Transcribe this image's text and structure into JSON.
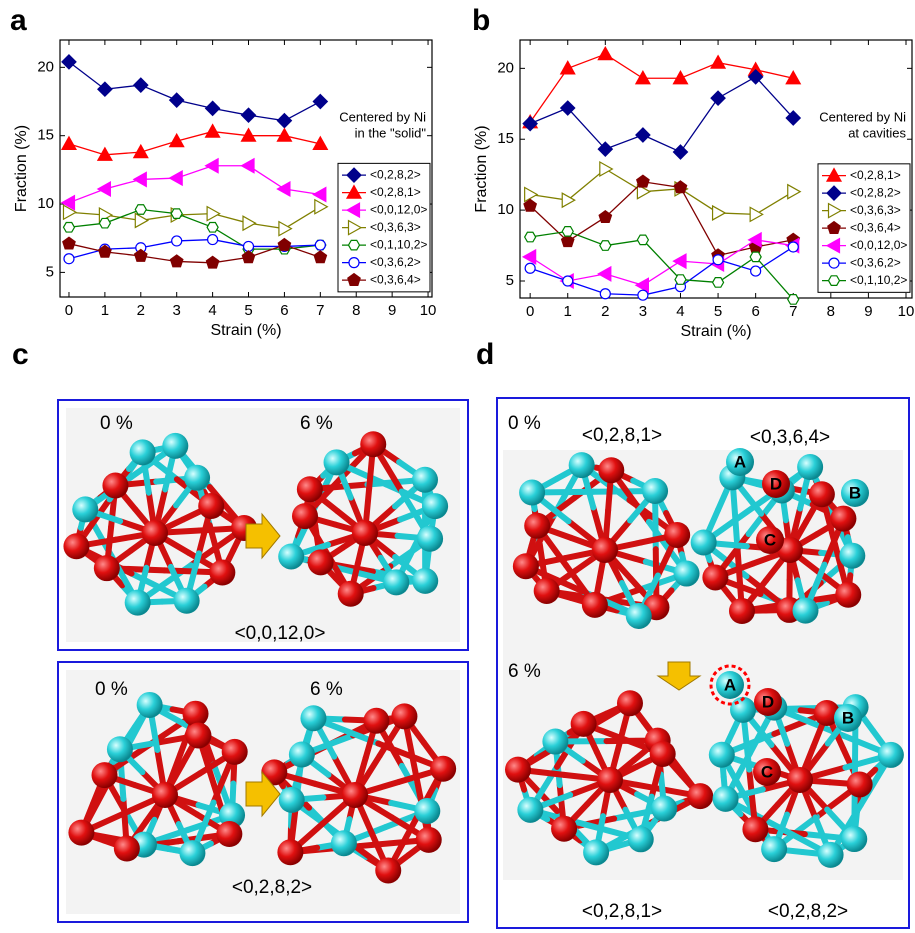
{
  "panel_labels": [
    "a",
    "b",
    "c",
    "d"
  ],
  "chart_data": [
    {
      "type": "line",
      "annotation": [
        "Centered by Ni",
        "in the \"solid\""
      ],
      "x_label": "Strain (%)",
      "y_label": "Fraction (%)",
      "x": [
        0,
        1,
        2,
        3,
        4,
        5,
        6,
        7
      ],
      "xlim": [
        -0.25,
        10.11
      ],
      "ylim": [
        3.2,
        22
      ],
      "xticks": [
        0,
        1,
        2,
        3,
        4,
        5,
        6,
        7,
        8,
        9,
        10
      ],
      "yticks": [
        5,
        10,
        15,
        20
      ],
      "legend": "right",
      "series": [
        {
          "name": "<0,2,8,2>",
          "color": "#00008b",
          "marker": "diamond",
          "filled": true,
          "values": [
            20.4,
            18.4,
            18.7,
            17.6,
            17.0,
            16.5,
            16.1,
            17.5
          ]
        },
        {
          "name": "<0,2,8,1>",
          "color": "#ff0000",
          "marker": "triangle-up",
          "filled": true,
          "values": [
            14.4,
            13.6,
            13.8,
            14.6,
            15.3,
            15.0,
            15.0,
            14.4
          ]
        },
        {
          "name": "<0,0,12,0>",
          "color": "#ff00ff",
          "marker": "triangle-left",
          "filled": true,
          "values": [
            10.1,
            11.1,
            11.8,
            11.9,
            12.8,
            12.8,
            11.1,
            10.7
          ]
        },
        {
          "name": "<0,3,6,3>",
          "color": "#808000",
          "marker": "triangle-right",
          "filled": false,
          "values": [
            9.4,
            9.2,
            8.8,
            9.2,
            9.3,
            8.6,
            8.2,
            9.8
          ]
        },
        {
          "name": "<0,1,10,2>",
          "color": "#008000",
          "marker": "hexagon",
          "filled": false,
          "values": [
            8.3,
            8.6,
            9.6,
            9.3,
            8.3,
            6.7,
            6.7,
            7.0
          ]
        },
        {
          "name": "<0,3,6,2>",
          "color": "#0000ff",
          "marker": "circle",
          "filled": false,
          "values": [
            6.0,
            6.7,
            6.8,
            7.3,
            7.4,
            6.9,
            6.9,
            7.0
          ]
        },
        {
          "name": "<0,3,6,4>",
          "color": "#800000",
          "marker": "pentagon",
          "filled": true,
          "values": [
            7.1,
            6.5,
            6.2,
            5.8,
            5.7,
            6.1,
            7.0,
            6.1
          ]
        }
      ]
    },
    {
      "type": "line",
      "annotation": [
        "Centered by Ni",
        "at cavities"
      ],
      "x_label": "Strain (%)",
      "y_label": "Fraction (%)",
      "x": [
        0,
        1,
        2,
        3,
        4,
        5,
        6,
        7
      ],
      "xlim": [
        -0.27,
        10.16
      ],
      "ylim": [
        3.8,
        22
      ],
      "xticks": [
        0,
        1,
        2,
        3,
        4,
        5,
        6,
        7,
        8,
        9,
        10
      ],
      "yticks": [
        5,
        10,
        15,
        20
      ],
      "legend": "right",
      "series": [
        {
          "name": "<0,2,8,1>",
          "color": "#ff0000",
          "marker": "triangle-up",
          "filled": true,
          "values": [
            16.2,
            20.0,
            21.0,
            19.3,
            19.3,
            20.4,
            19.9,
            19.3
          ]
        },
        {
          "name": "<0,2,8,2>",
          "color": "#00008b",
          "marker": "diamond",
          "filled": true,
          "values": [
            16.1,
            17.2,
            14.3,
            15.3,
            14.1,
            17.9,
            19.4,
            16.5
          ]
        },
        {
          "name": "<0,3,6,3>",
          "color": "#808000",
          "marker": "triangle-right",
          "filled": false,
          "values": [
            11.1,
            10.7,
            12.9,
            11.3,
            11.5,
            9.8,
            9.7,
            11.3
          ]
        },
        {
          "name": "<0,3,6,4>",
          "color": "#800000",
          "marker": "pentagon",
          "filled": true,
          "values": [
            10.3,
            7.8,
            9.5,
            12.0,
            11.6,
            6.8,
            7.4,
            7.9
          ]
        },
        {
          "name": "<0,0,12,0>",
          "color": "#ff00ff",
          "marker": "triangle-left",
          "filled": true,
          "values": [
            6.7,
            5.0,
            5.5,
            4.7,
            6.4,
            6.2,
            7.9,
            7.5
          ]
        },
        {
          "name": "<0,3,6,2>",
          "color": "#0000ff",
          "marker": "circle",
          "filled": false,
          "values": [
            5.9,
            5.0,
            4.1,
            4.0,
            4.6,
            6.5,
            5.7,
            7.4
          ]
        },
        {
          "name": "<0,1,10,2>",
          "color": "#008000",
          "marker": "hexagon",
          "filled": false,
          "values": [
            8.1,
            8.5,
            7.5,
            7.9,
            5.1,
            4.9,
            6.7,
            3.7
          ]
        }
      ]
    }
  ],
  "panel_c": {
    "top": {
      "start": "0 %",
      "end": "6 %",
      "cluster": "<0,0,12,0>"
    },
    "bottom": {
      "start": "0 %",
      "end": "6 %",
      "cluster": "<0,2,8,2>"
    }
  },
  "panel_d": {
    "top_strain": "0 %",
    "bottom_strain": "6 %",
    "top_clusters": [
      "<0,2,8,1>",
      "<0,3,6,4>"
    ],
    "bottom_clusters": [
      "<0,2,8,1>",
      "<0,2,8,2>"
    ],
    "top_atoms": [
      "A",
      "D",
      "B",
      "C"
    ],
    "bottom_atoms": [
      "A",
      "D",
      "B",
      "C"
    ]
  }
}
